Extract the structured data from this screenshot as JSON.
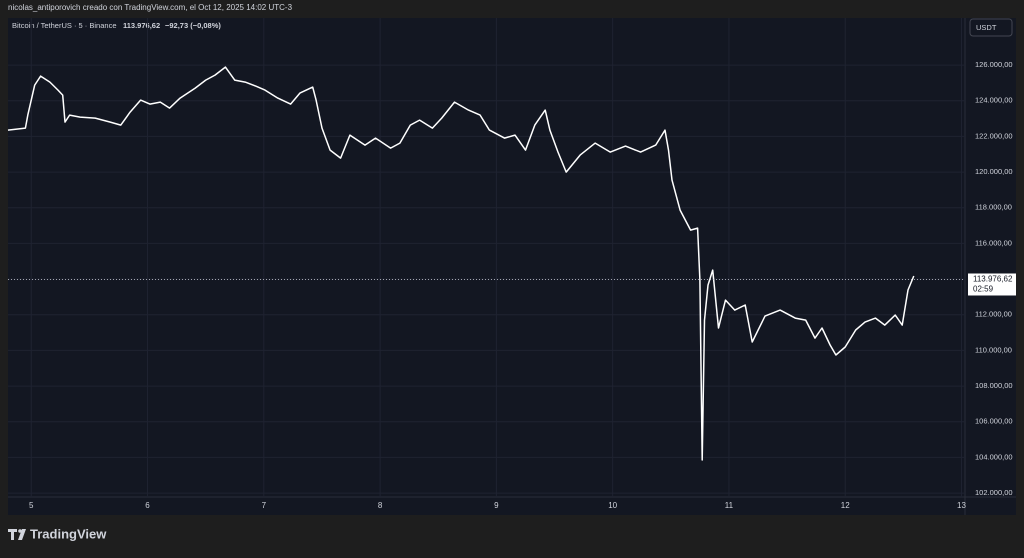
{
  "header": "nicolas_antiporovich creado con TradingView.com, el Oct 12, 2025 14:02 UTC-3",
  "brand": "TradingView",
  "chart_data": {
    "type": "line",
    "symbol": "Bitcoin / TetherUS · 5 · Binance",
    "last_price": 113976.62,
    "last_price_label": "113.976,62",
    "change": "−92,73 (−0,08%)",
    "countdown": "02:59",
    "currency": "USDT",
    "grid": true,
    "xlim": [
      4.8,
      13.03
    ],
    "xticks": [
      5,
      6,
      7,
      8,
      9,
      10,
      11,
      12,
      13
    ],
    "ylim": [
      101780,
      128640
    ],
    "yticks": [
      {
        "value": 102000,
        "label": "102.000,00"
      },
      {
        "value": 104000,
        "label": "104.000,00"
      },
      {
        "value": 106000,
        "label": "106.000,00"
      },
      {
        "value": 108000,
        "label": "108.000,00"
      },
      {
        "value": 110000,
        "label": "110.000,00"
      },
      {
        "value": 112000,
        "label": "112.000,00"
      },
      {
        "value": 114000,
        "label": "114.000,00"
      },
      {
        "value": 116000,
        "label": "116.000,00"
      },
      {
        "value": 118000,
        "label": "118.000,00"
      },
      {
        "value": 120000,
        "label": "120.000,00"
      },
      {
        "value": 122000,
        "label": "122.000,00"
      },
      {
        "value": 124000,
        "label": "124.000,00"
      },
      {
        "value": 126000,
        "label": "126.000,00"
      }
    ],
    "series": [
      {
        "name": "Bitcoin / TetherUS",
        "color": "#ffffff",
        "x": [
          4.8,
          4.95,
          4.97,
          5.03,
          5.08,
          5.16,
          5.23,
          5.27,
          5.29,
          5.33,
          5.42,
          5.55,
          5.68,
          5.77,
          5.85,
          5.94,
          6.02,
          6.11,
          6.19,
          6.28,
          6.41,
          6.5,
          6.58,
          6.67,
          6.75,
          6.84,
          6.93,
          7.01,
          7.12,
          7.23,
          7.31,
          7.42,
          7.45,
          7.5,
          7.57,
          7.66,
          7.74,
          7.87,
          7.96,
          8.09,
          8.17,
          8.26,
          8.34,
          8.45,
          8.53,
          8.64,
          8.76,
          8.86,
          8.94,
          9.07,
          9.16,
          9.25,
          9.33,
          9.42,
          9.46,
          9.53,
          9.6,
          9.72,
          9.85,
          9.98,
          10.11,
          10.24,
          10.37,
          10.45,
          10.48,
          10.51,
          10.58,
          10.67,
          10.73,
          10.75,
          10.77,
          10.79,
          10.82,
          10.86,
          10.91,
          10.97,
          11.05,
          11.14,
          11.2,
          11.31,
          11.44,
          11.57,
          11.66,
          11.74,
          11.8,
          11.87,
          11.92,
          12.0,
          12.09,
          12.17,
          12.26,
          12.34,
          12.43,
          12.49,
          12.54,
          12.59
        ],
        "values": [
          122356,
          122468,
          123197,
          124879,
          125383,
          125047,
          124598,
          124318,
          122804,
          123197,
          123085,
          123028,
          122804,
          122636,
          123365,
          124038,
          123813,
          123925,
          123589,
          124150,
          124710,
          125159,
          125439,
          125888,
          125159,
          125047,
          124822,
          124598,
          124150,
          123813,
          124430,
          124766,
          124038,
          122468,
          121234,
          120785,
          122075,
          121514,
          121907,
          121346,
          121627,
          122636,
          122916,
          122468,
          123028,
          123925,
          123477,
          123197,
          122356,
          121907,
          122075,
          121234,
          122636,
          123477,
          122356,
          121122,
          120001,
          120954,
          121627,
          121122,
          121458,
          121122,
          121514,
          122356,
          121234,
          119552,
          117870,
          116749,
          116861,
          113945,
          103852,
          111702,
          113665,
          114506,
          111254,
          112824,
          112263,
          112544,
          110469,
          111926,
          112263,
          111814,
          111702,
          110693,
          111254,
          110301,
          109740,
          110189,
          111142,
          111590,
          111814,
          111422,
          111983,
          111422,
          113385,
          114170
        ]
      }
    ]
  }
}
